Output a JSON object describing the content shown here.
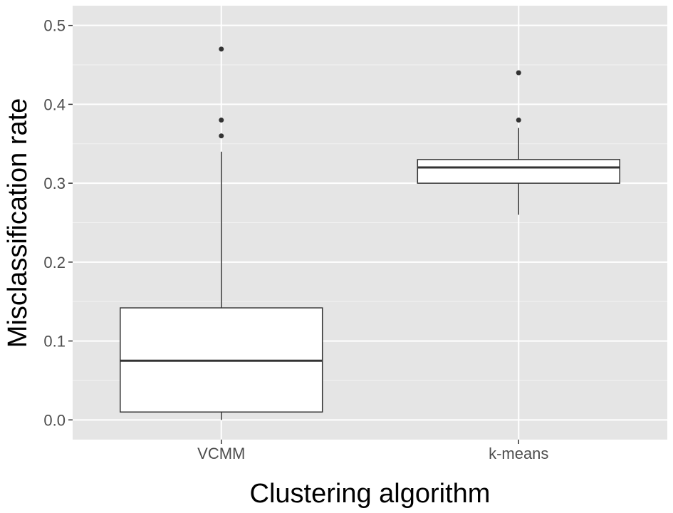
{
  "chart_data": {
    "type": "box",
    "xlabel": "Clustering algorithm",
    "ylabel": "Misclassification rate",
    "categories": [
      "VCMM",
      "k-means"
    ],
    "ylim": [
      -0.025,
      0.525
    ],
    "y_ticks": [
      0.0,
      0.1,
      0.2,
      0.3,
      0.4,
      0.5
    ],
    "y_tick_labels": [
      "0.0",
      "0.1",
      "0.2",
      "0.3",
      "0.4",
      "0.5"
    ],
    "grid": true,
    "boxes": [
      {
        "category": "VCMM",
        "whisker_low": 0.0,
        "q1": 0.01,
        "median": 0.075,
        "q3": 0.142,
        "whisker_high": 0.34,
        "outliers": [
          0.36,
          0.38,
          0.47
        ]
      },
      {
        "category": "k-means",
        "whisker_low": 0.26,
        "q1": 0.3,
        "median": 0.32,
        "q3": 0.33,
        "whisker_high": 0.37,
        "outliers": [
          0.38,
          0.44
        ]
      }
    ]
  }
}
